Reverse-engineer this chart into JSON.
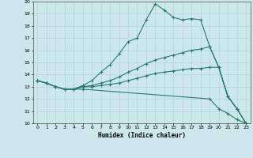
{
  "xlabel": "Humidex (Indice chaleur)",
  "bg_color": "#cde8ec",
  "grid_color": "#b8d8dc",
  "line_color": "#2a7a70",
  "xlim": [
    -0.5,
    23.5
  ],
  "ylim": [
    10,
    20
  ],
  "xticks": [
    0,
    1,
    2,
    3,
    4,
    5,
    6,
    7,
    8,
    9,
    10,
    11,
    12,
    13,
    14,
    15,
    16,
    17,
    18,
    19,
    20,
    21,
    22,
    23
  ],
  "yticks": [
    10,
    11,
    12,
    13,
    14,
    15,
    16,
    17,
    18,
    19,
    20
  ],
  "lines": [
    {
      "x": [
        0,
        1,
        2,
        3,
        4,
        5,
        6,
        7,
        8,
        9,
        10,
        11,
        12,
        13,
        14,
        15,
        16,
        17,
        18,
        19,
        20,
        21,
        22,
        23
      ],
      "y": [
        13.5,
        13.3,
        13.0,
        12.8,
        12.8,
        13.1,
        13.5,
        14.2,
        14.8,
        15.7,
        16.7,
        17.0,
        18.5,
        19.8,
        19.3,
        18.7,
        18.5,
        18.6,
        18.5,
        16.3,
        14.6,
        12.2,
        11.2,
        10.0
      ]
    },
    {
      "x": [
        0,
        1,
        2,
        3,
        4,
        5,
        6,
        7,
        8,
        9,
        10,
        11,
        12,
        13,
        14,
        15,
        16,
        17,
        18,
        19,
        20,
        21,
        22,
        23
      ],
      "y": [
        13.5,
        13.3,
        13.0,
        12.8,
        12.8,
        13.0,
        13.1,
        13.3,
        13.5,
        13.8,
        14.2,
        14.5,
        14.9,
        15.2,
        15.4,
        15.6,
        15.8,
        16.0,
        16.1,
        16.3,
        14.6,
        12.2,
        11.2,
        10.0
      ]
    },
    {
      "x": [
        0,
        1,
        2,
        3,
        4,
        5,
        6,
        7,
        8,
        9,
        10,
        11,
        12,
        13,
        14,
        15,
        16,
        17,
        18,
        19,
        20,
        21,
        22,
        23
      ],
      "y": [
        13.5,
        13.3,
        13.0,
        12.8,
        12.8,
        13.0,
        13.0,
        13.1,
        13.2,
        13.3,
        13.5,
        13.7,
        13.9,
        14.1,
        14.2,
        14.3,
        14.4,
        14.5,
        14.5,
        14.6,
        14.6,
        12.2,
        11.2,
        10.0
      ]
    },
    {
      "x": [
        0,
        1,
        2,
        3,
        4,
        5,
        19,
        20,
        21,
        22,
        23
      ],
      "y": [
        13.5,
        13.3,
        13.0,
        12.8,
        12.8,
        12.8,
        12.0,
        11.2,
        10.8,
        10.3,
        10.0
      ]
    }
  ]
}
